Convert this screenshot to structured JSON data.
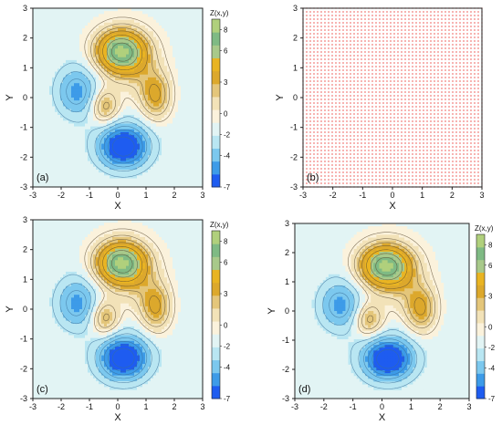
{
  "chart_data": [
    {
      "panel_label": "(a)",
      "type": "contour",
      "xlabel": "X",
      "ylabel": "Y",
      "xlim": [
        -3,
        3
      ],
      "ylim": [
        -3,
        3
      ],
      "xticks": [
        "-3",
        "-2",
        "-1",
        "0",
        "1",
        "2",
        "3"
      ],
      "yticks": [
        "-3",
        "-2",
        "-1",
        "0",
        "1",
        "2",
        "3"
      ],
      "colorbar_title": "Z(x,y)",
      "colorbar_ticks": [
        "8",
        "6",
        "3",
        "0",
        "-2",
        "-4",
        "-7"
      ],
      "z_range": [
        -7,
        9
      ]
    },
    {
      "panel_label": "(b)",
      "type": "scatter",
      "xlabel": "X",
      "ylabel": "Y",
      "xlim": [
        -3,
        3
      ],
      "ylim": [
        -3,
        3
      ],
      "xticks": [
        "-3",
        "-2",
        "-1",
        "0",
        "1",
        "2",
        "3"
      ],
      "yticks": [
        "-3",
        "-2",
        "-1",
        "0",
        "1",
        "2",
        "3"
      ],
      "grid_points": {
        "x_range": [
          -3,
          3
        ],
        "y_range": [
          -3,
          3
        ],
        "count_per_axis": 50
      },
      "marker_color": "#e8302a"
    },
    {
      "panel_label": "(c)",
      "type": "contour",
      "xlabel": "X",
      "ylabel": "Y",
      "xlim": [
        -3,
        3
      ],
      "ylim": [
        -3,
        3
      ],
      "xticks": [
        "-3",
        "-2",
        "-1",
        "0",
        "1",
        "2",
        "3"
      ],
      "yticks": [
        "-3",
        "-2",
        "-1",
        "0",
        "1",
        "2",
        "3"
      ],
      "colorbar_title": "Z(x,y)",
      "colorbar_ticks": [
        "8",
        "6",
        "3",
        "0",
        "-2",
        "-4",
        "-7"
      ],
      "z_range": [
        -7,
        9
      ]
    },
    {
      "panel_label": "(d)",
      "type": "contour",
      "xlabel": "X",
      "ylabel": "Y",
      "xlim": [
        -3,
        3
      ],
      "ylim": [
        -3,
        3
      ],
      "xticks": [
        "-3",
        "-2",
        "-1",
        "0",
        "1",
        "2",
        "3"
      ],
      "yticks": [
        "-3",
        "-2",
        "-1",
        "0",
        "1",
        "2",
        "3"
      ],
      "colorbar_title": "Z(x,y)",
      "colorbar_ticks": [
        "8",
        "6",
        "3",
        "0",
        "-2",
        "-4",
        "-7"
      ],
      "z_range": [
        -7,
        9
      ]
    }
  ],
  "colors": {
    "colormap": [
      "#1e5cf0",
      "#3d9be8",
      "#7cc8ee",
      "#b9e6f2",
      "#e2f4f4",
      "#fbf2dc",
      "#f2e2b8",
      "#e4c67a",
      "#dca82c",
      "#e9b422",
      "#a8c98a",
      "#7fba84",
      "#b0d07c"
    ],
    "contour_line": "#5a4a30"
  }
}
